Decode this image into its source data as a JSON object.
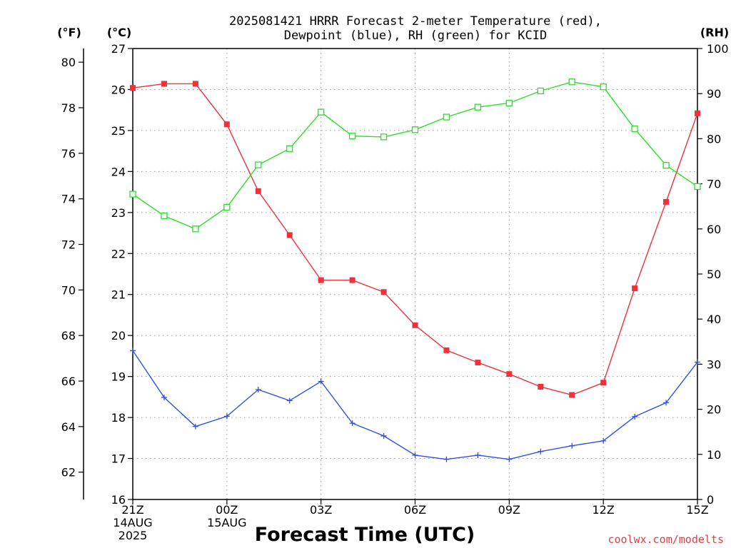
{
  "chart_data": {
    "type": "line",
    "title_lines": [
      "2025081421 HRRR Forecast 2-meter Temperature (red),",
      "Dewpoint (blue), RH (green) for KCID"
    ],
    "unit_labels": {
      "fahrenheit": "(°F)",
      "celsius": "(°C)",
      "rh": "(RH)"
    },
    "xlabel": "Forecast Time (UTC)",
    "x": [
      0,
      1,
      2,
      3,
      4,
      5,
      6,
      7,
      8,
      9,
      10,
      11,
      12,
      13,
      14,
      15,
      16,
      17,
      18
    ],
    "x_ticks": [
      {
        "x": 0,
        "lines": [
          "21Z",
          "14AUG",
          "2025"
        ]
      },
      {
        "x": 3,
        "lines": [
          "00Z",
          "15AUG"
        ]
      },
      {
        "x": 6,
        "lines": [
          "03Z"
        ]
      },
      {
        "x": 9,
        "lines": [
          "06Z"
        ]
      },
      {
        "x": 12,
        "lines": [
          "09Z"
        ]
      },
      {
        "x": 15,
        "lines": [
          "12Z"
        ]
      },
      {
        "x": 18,
        "lines": [
          "15Z"
        ]
      }
    ],
    "celsius_axis": {
      "min": 16,
      "max": 27,
      "ticks": [
        16,
        17,
        18,
        19,
        20,
        21,
        22,
        23,
        24,
        25,
        26,
        27
      ]
    },
    "fahrenheit_axis": {
      "min": 60.8,
      "max": 80.6,
      "ticks": [
        62,
        64,
        66,
        68,
        70,
        72,
        74,
        76,
        78,
        80
      ]
    },
    "rh_axis": {
      "min": 0,
      "max": 100,
      "ticks": [
        0,
        10,
        20,
        30,
        40,
        50,
        60,
        70,
        80,
        90,
        100
      ]
    },
    "grid": true,
    "series": [
      {
        "key": "temperature",
        "color": "#f0303a",
        "axis": "celsius",
        "marker": "filled-square",
        "values": [
          26.04,
          26.14,
          26.14,
          25.15,
          23.52,
          22.45,
          21.35,
          21.35,
          21.06,
          20.25,
          19.64,
          19.34,
          19.06,
          18.75,
          18.55,
          18.85,
          21.15,
          23.26,
          25.42
        ]
      },
      {
        "key": "dewpoint",
        "color": "#3050e8",
        "axis": "celsius",
        "marker": "plus",
        "values": [
          19.63,
          18.49,
          17.78,
          18.03,
          18.68,
          18.41,
          18.88,
          17.86,
          17.55,
          17.08,
          16.98,
          17.08,
          16.98,
          17.17,
          17.31,
          17.43,
          18.02,
          18.36,
          19.35
        ]
      },
      {
        "key": "rh",
        "color": "#28e028",
        "axis": "rh",
        "marker": "open-square",
        "values": [
          67.7,
          62.9,
          60.0,
          64.8,
          74.2,
          77.8,
          85.9,
          80.6,
          80.4,
          82.0,
          84.8,
          87.0,
          87.9,
          90.6,
          92.6,
          91.5,
          82.2,
          74.1,
          69.4
        ]
      }
    ]
  },
  "credit": "coolwx.com/modelts"
}
